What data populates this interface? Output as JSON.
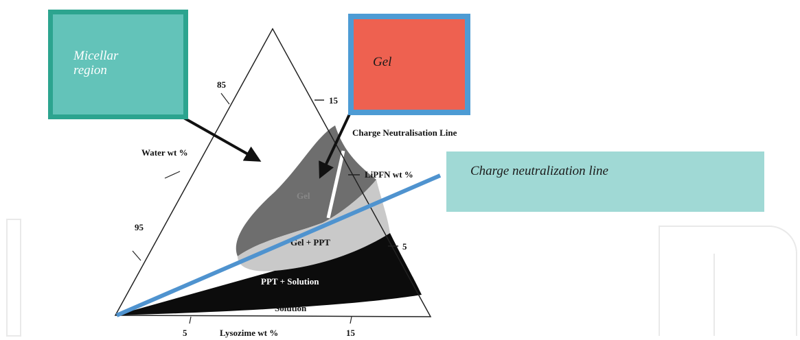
{
  "callouts": {
    "micellar": {
      "line1": "Micellar",
      "line2": "region"
    },
    "gel": "Gel",
    "charge_line": "Charge neutralization line"
  },
  "diagram": {
    "left_axis": {
      "title": "Water wt %",
      "tick_85": "85",
      "tick_95": "95"
    },
    "right_axis": {
      "title": "LiPFN wt %",
      "tick_15": "15",
      "tick_5": "5"
    },
    "bottom_axis": {
      "title": "Lysozime wt %",
      "tick_5": "5",
      "tick_15": "15"
    },
    "regions": {
      "gel": "Gel",
      "gel_ppt": "Gel + PPT",
      "ppt_solution": "PPT + Solution",
      "solution": "Solution"
    },
    "line_label": "Charge Neutralisation Line"
  },
  "colors": {
    "micellar_fill": "#63c3b9",
    "micellar_border": "#2ca48f",
    "gel_fill": "#ee6150",
    "gel_border": "#4d9bd4",
    "charge_box": "#a0d9d5",
    "blue_line": "#4f93cf",
    "gel_region": "#6e6e6e",
    "gel_ppt_region": "#c9c9c9",
    "ppt_solution_region": "#0c0c0c"
  }
}
